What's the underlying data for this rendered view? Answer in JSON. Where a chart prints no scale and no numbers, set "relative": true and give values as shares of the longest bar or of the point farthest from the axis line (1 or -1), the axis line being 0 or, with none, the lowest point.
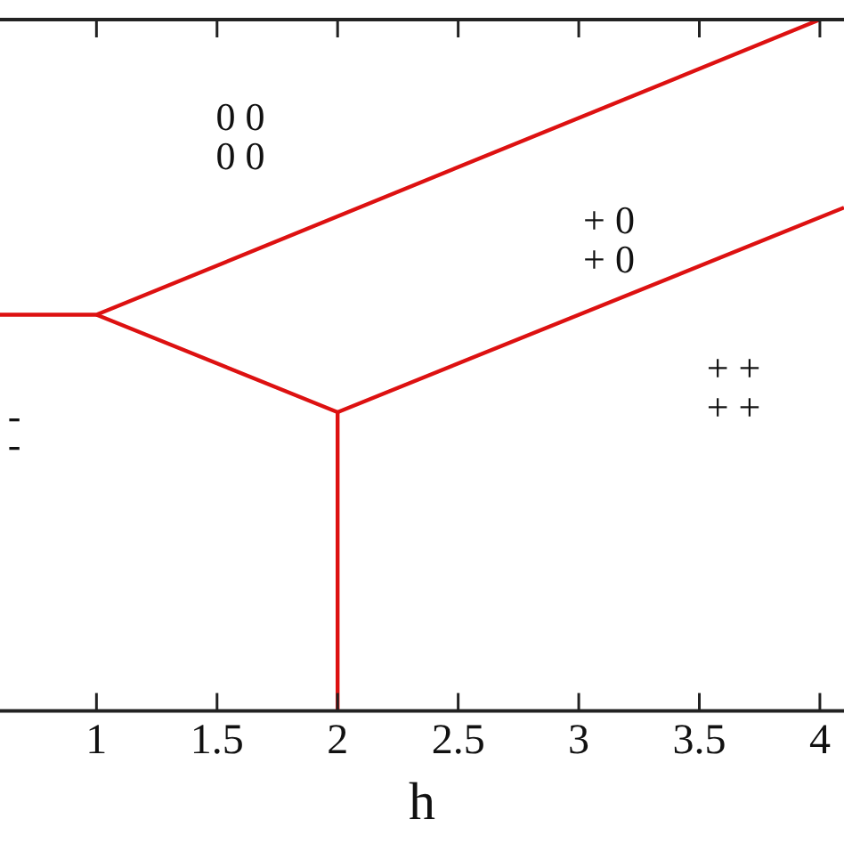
{
  "chart_data": {
    "type": "line",
    "xlabel": "h",
    "relative": true,
    "xlim": [
      0.6,
      4.1
    ],
    "xticks": [
      1,
      {
        "value": 1.5,
        "label": "1.5"
      },
      2,
      {
        "value": 2.5,
        "label": "2.5"
      },
      3,
      {
        "value": 3.5,
        "label": "3.5"
      },
      4
    ],
    "marker": "none",
    "line_style": "solid",
    "legend": false,
    "series": [
      {
        "color": "#dd1111",
        "x": [
          0.6,
          1,
          4
        ],
        "values": [
          0.573,
          0.573,
          1
        ]
      },
      {
        "color": "#dd1111",
        "x": [
          1,
          2,
          4.1
        ],
        "values": [
          0.573,
          0.432,
          0.728
        ]
      },
      {
        "color": "#dd1111",
        "x": [
          2,
          2
        ],
        "values": [
          0.432,
          0
        ]
      }
    ],
    "annotations": [
      "0 0",
      "0 0",
      "+ 0",
      "+ 0",
      "+ +",
      "+ +",
      "-",
      "-"
    ]
  }
}
